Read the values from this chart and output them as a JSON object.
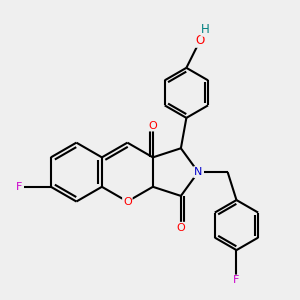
{
  "bg_color": "#efefef",
  "bond_color": "#000000",
  "bond_width": 1.5,
  "atom_colors": {
    "O": "#ff0000",
    "N": "#0000cd",
    "F": "#cc00cc",
    "OH_H": "#008080",
    "C": "#000000"
  },
  "figsize": [
    3.0,
    3.0
  ],
  "dpi": 100,
  "xlim": [
    -2.5,
    7.5
  ],
  "ylim": [
    -4.0,
    5.5
  ]
}
